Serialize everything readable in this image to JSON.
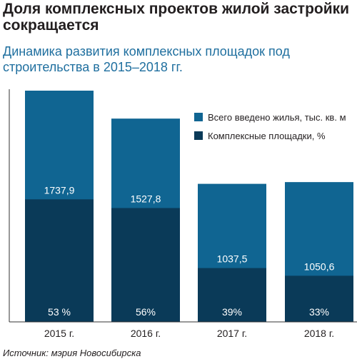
{
  "headline": "Доля комплексных проектов жилой застройки сокращается",
  "subtitle": "Динамика развития комплексных площадок под строительства в 2015–2018 гг.",
  "source": "Источник: мэрия Новосибирска",
  "colors": {
    "total": "#106592",
    "complex": "#0a3a58",
    "subtitle": "#1f6f9f",
    "axis": "#333333"
  },
  "chart_data": {
    "type": "bar",
    "stacked": true,
    "categories": [
      "2015 г.",
      "2016 г.",
      "2017 г.",
      "2018 г."
    ],
    "series": [
      {
        "name": "Всего введено жилья, тыс. кв. м",
        "values": [
          1737.9,
          1527.8,
          1037.5,
          1050.6
        ],
        "labels": [
          "1737,9",
          "1527,8",
          "1037,5",
          "1050,6"
        ],
        "color": "#106592"
      },
      {
        "name": "Комплексные площадки, %",
        "values": [
          53,
          56,
          39,
          33
        ],
        "labels": [
          "53 %",
          "56%",
          "39%",
          "33%"
        ],
        "color": "#0a3a58"
      }
    ],
    "legend_position": "top-right",
    "grid": false
  }
}
